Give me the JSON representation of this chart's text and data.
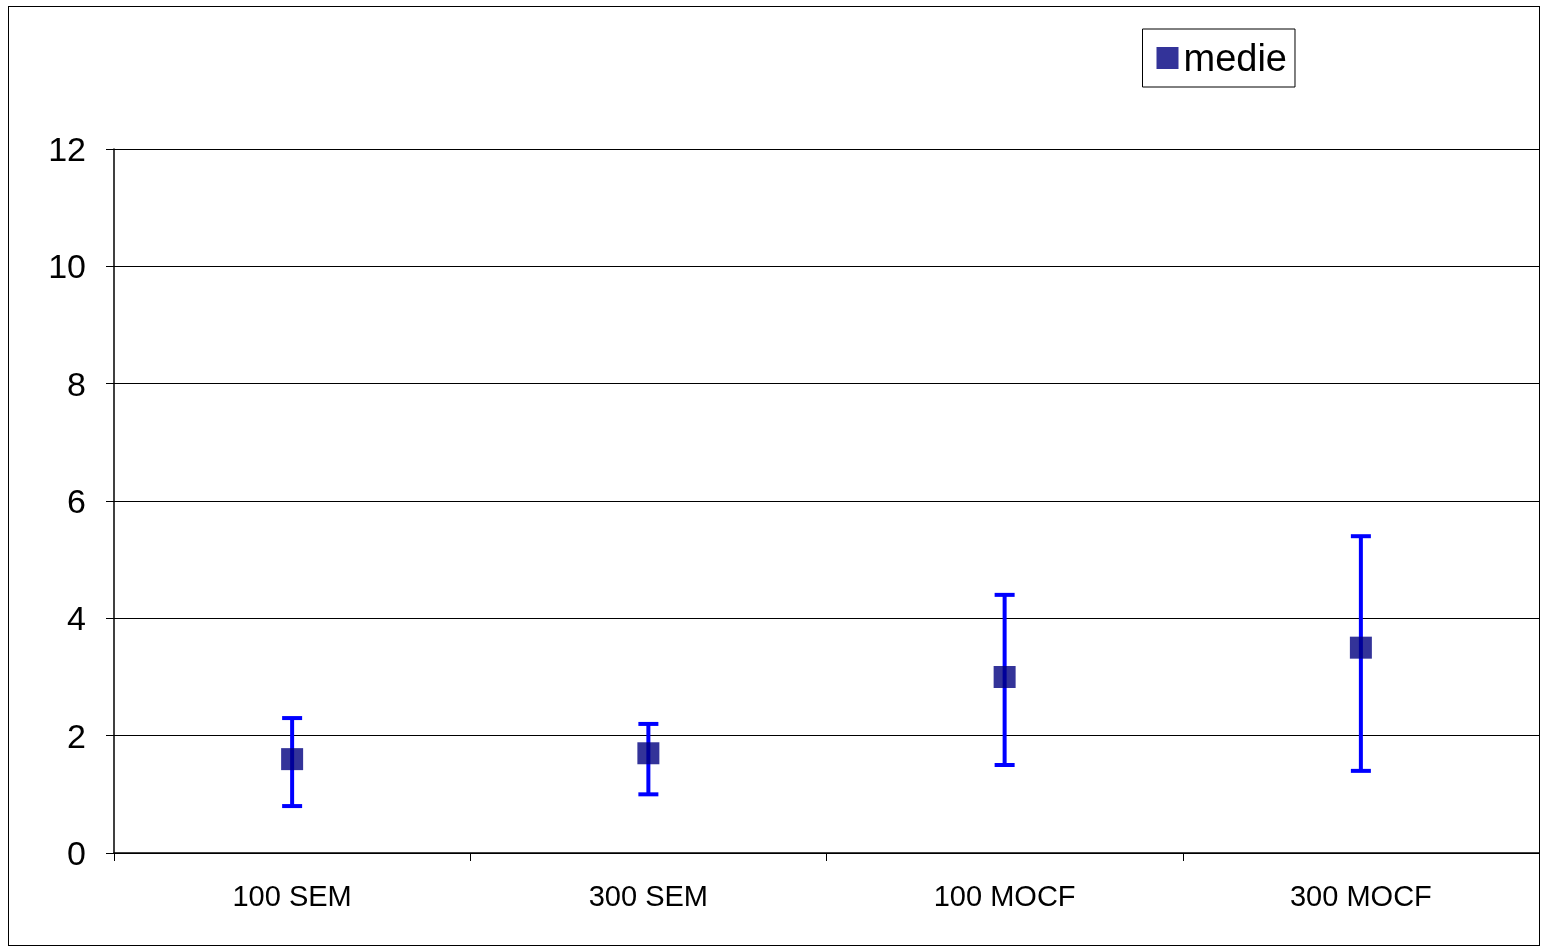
{
  "chart_data": {
    "type": "scatter",
    "categories": [
      "100 SEM",
      "300 SEM",
      "100 MOCF",
      "300 MOCF"
    ],
    "series": [
      {
        "name": "medie",
        "color": "#000080",
        "values": [
          1.6,
          1.7,
          3.0,
          3.5
        ],
        "errors": [
          [
            0.8,
            2.3
          ],
          [
            1.0,
            2.2
          ],
          [
            1.5,
            4.4
          ],
          [
            1.4,
            5.4
          ]
        ]
      }
    ],
    "ylim": [
      0,
      12
    ],
    "yticks": [
      0,
      2,
      4,
      6,
      8,
      10,
      12
    ],
    "grid": "y",
    "legend": "top right",
    "marker": "square"
  }
}
